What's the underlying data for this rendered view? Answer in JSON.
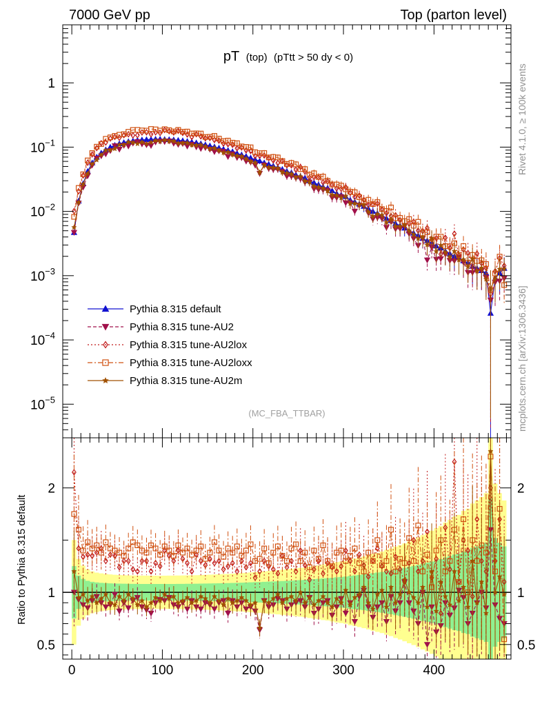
{
  "header": {
    "left": "7000 GeV pp",
    "right": "Top (parton level)"
  },
  "side": {
    "rivet": "Rivet 4.1.0, ≥ 100k events",
    "mcplots": "mcplots.cern.ch [arXiv:1306.3436]"
  },
  "colors": {
    "default": "#1010d0",
    "au2": "#a0104a",
    "au2lox": "#c01818",
    "au2loxx": "#d05010",
    "au2m": "#a05000",
    "band_outer": "#ffff90",
    "band_inner": "#90f090"
  },
  "chart_data": [
    {
      "type": "line",
      "scale": "log",
      "title_main": "pT",
      "title_sub1": "(top)",
      "title_sub2": "(pTtt > 50 dy < 0)",
      "analysis": "(MC_FBA_TTBAR)",
      "xlim": [
        -10,
        485
      ],
      "ylim": [
        3e-06,
        8
      ],
      "ytick_labels": [
        "1",
        "10",
        "10",
        "10",
        "10",
        "10"
      ],
      "ytick_exponents": [
        "",
        "−1",
        "−2",
        "−3",
        "−4",
        "−5"
      ],
      "legend": [
        {
          "name": "Pythia 8.315 default",
          "marker": "triangle-up",
          "dash": ""
        },
        {
          "name": "Pythia 8.315 tune-AU2",
          "marker": "triangle-down",
          "dash": "5,3"
        },
        {
          "name": "Pythia 8.315 tune-AU2lox",
          "marker": "diamond",
          "dash": "2,3"
        },
        {
          "name": "Pythia 8.315 tune-AU2loxx",
          "marker": "square",
          "dash": "7,3,2,3"
        },
        {
          "name": "Pythia 8.315 tune-AU2m",
          "marker": "star",
          "dash": ""
        }
      ],
      "series_keys": [
        "default",
        "au2",
        "au2lox",
        "au2loxx",
        "au2m"
      ],
      "bin_centers": [
        2.5,
        7.5,
        12.5,
        17.5,
        22.5,
        27.5,
        32.5,
        37.5,
        42.5,
        47.5,
        52.5,
        57.5,
        62.5,
        67.5,
        72.5,
        77.5,
        82.5,
        87.5,
        92.5,
        97.5,
        102.5,
        107.5,
        112.5,
        117.5,
        122.5,
        127.5,
        132.5,
        137.5,
        142.5,
        147.5,
        152.5,
        157.5,
        162.5,
        167.5,
        172.5,
        177.5,
        182.5,
        187.5,
        192.5,
        197.5,
        202.5,
        207.5,
        212.5,
        217.5,
        222.5,
        227.5,
        232.5,
        237.5,
        242.5,
        247.5,
        252.5,
        257.5,
        262.5,
        267.5,
        272.5,
        277.5,
        282.5,
        287.5,
        292.5,
        297.5,
        302.5,
        307.5,
        312.5,
        317.5,
        322.5,
        327.5,
        332.5,
        337.5,
        342.5,
        347.5,
        352.5,
        357.5,
        362.5,
        367.5,
        372.5,
        377.5,
        382.5,
        387.5,
        392.5,
        397.5,
        402.5,
        407.5,
        412.5,
        417.5,
        422.5,
        427.5,
        432.5,
        437.5,
        442.5,
        447.5,
        452.5,
        457.5,
        462.5,
        467.5,
        472.5,
        477.5
      ],
      "default_values": [
        0.0047,
        0.0145,
        0.027,
        0.042,
        0.057,
        0.07,
        0.081,
        0.091,
        0.1,
        0.107,
        0.113,
        0.118,
        0.122,
        0.125,
        0.128,
        0.13,
        0.131,
        0.132,
        0.133,
        0.133,
        0.132,
        0.131,
        0.13,
        0.128,
        0.126,
        0.123,
        0.12,
        0.117,
        0.113,
        0.109,
        0.105,
        0.101,
        0.097,
        0.093,
        0.089,
        0.085,
        0.08,
        0.076,
        0.072,
        0.068,
        0.064,
        0.061,
        0.057,
        0.054,
        0.051,
        0.048,
        0.045,
        0.042,
        0.04,
        0.037,
        0.035,
        0.033,
        0.03,
        0.028,
        0.026,
        0.024,
        0.023,
        0.021,
        0.019,
        0.018,
        0.017,
        0.015,
        0.014,
        0.013,
        0.012,
        0.011,
        0.01,
        0.0093,
        0.0086,
        0.0078,
        0.0072,
        0.0065,
        0.006,
        0.0055,
        0.005,
        0.0046,
        0.0042,
        0.0038,
        0.0035,
        0.0032,
        0.0029,
        0.0027,
        0.0024,
        0.0022,
        0.002,
        0.0019,
        0.0017,
        0.0016,
        0.0014,
        0.0013,
        0.0012,
        0.0011,
        0.00026,
        0.0009,
        0.0011,
        0.0013
      ],
      "ratio_au2": [
        1.0,
        0.93,
        0.88,
        0.85,
        0.92,
        0.96,
        0.9,
        0.86,
        0.88,
        0.98,
        0.82,
        0.9,
        0.85,
        0.92,
        0.95,
        0.86,
        0.83,
        0.8,
        0.9,
        0.93,
        0.92,
        0.95,
        0.88,
        0.86,
        0.9,
        0.84,
        0.92,
        0.86,
        0.84,
        0.9,
        0.88,
        0.84,
        0.9,
        0.92,
        0.8,
        0.92,
        0.86,
        0.9,
        0.84,
        0.86,
        0.82,
        0.64,
        0.92,
        0.86,
        0.88,
        0.94,
        0.92,
        0.84,
        0.88,
        0.9,
        0.92,
        0.86,
        0.95,
        0.8,
        0.84,
        0.9,
        0.92,
        0.78,
        0.86,
        0.94,
        0.8,
        0.9,
        0.72,
        0.96,
        1.02,
        0.86,
        0.76,
        0.86,
        0.9,
        0.72,
        0.96,
        0.82,
        0.9,
        1.1,
        0.9,
        0.82,
        0.7,
        1.0,
        0.5,
        0.86,
        0.62,
        0.68,
        0.9,
        0.78,
        0.85,
        1.02,
        0.95,
        0.7,
        0.8,
        0.9,
        1.0,
        0.85,
        1.6,
        0.88,
        0.75,
        0.7
      ],
      "ratio_au2lox": [
        2.15,
        1.42,
        1.34,
        1.36,
        1.35,
        1.38,
        1.42,
        1.3,
        1.36,
        1.35,
        1.24,
        1.3,
        1.3,
        1.22,
        1.2,
        1.3,
        1.3,
        1.2,
        1.28,
        1.25,
        1.4,
        1.35,
        1.3,
        1.4,
        1.32,
        1.28,
        1.2,
        1.36,
        1.3,
        1.26,
        1.32,
        1.28,
        1.3,
        1.22,
        1.25,
        1.28,
        1.2,
        1.3,
        1.24,
        1.28,
        1.14,
        1.2,
        1.3,
        1.25,
        1.22,
        1.18,
        1.35,
        1.24,
        1.3,
        1.2,
        1.4,
        1.26,
        1.12,
        1.22,
        1.3,
        1.18,
        1.28,
        1.24,
        1.2,
        1.25,
        1.4,
        1.3,
        1.2,
        1.36,
        1.26,
        1.15,
        1.3,
        1.42,
        1.25,
        1.2,
        1.18,
        1.34,
        1.22,
        1.1,
        1.28,
        1.5,
        1.2,
        1.3,
        1.58,
        1.14,
        1.32,
        0.8,
        1.62,
        1.22,
        2.25,
        1.1,
        1.5,
        1.4,
        0.96,
        1.7,
        1.3,
        1.2,
        2.0,
        1.3,
        1.7,
        1.1
      ],
      "ratio_au2loxx": [
        1.75,
        1.6,
        1.4,
        1.48,
        1.42,
        1.45,
        1.38,
        1.48,
        1.42,
        1.4,
        1.38,
        1.35,
        1.42,
        1.48,
        1.45,
        1.4,
        1.38,
        1.45,
        1.42,
        1.36,
        1.44,
        1.4,
        1.35,
        1.45,
        1.38,
        1.42,
        1.36,
        1.4,
        1.44,
        1.32,
        1.38,
        1.48,
        1.4,
        1.34,
        1.42,
        1.38,
        1.44,
        1.35,
        1.4,
        1.46,
        1.3,
        1.32,
        1.42,
        1.28,
        1.38,
        1.44,
        1.35,
        1.3,
        1.42,
        1.46,
        1.3,
        1.38,
        1.24,
        1.4,
        1.32,
        1.45,
        1.3,
        1.25,
        1.38,
        1.4,
        1.3,
        1.35,
        1.42,
        1.28,
        1.2,
        1.38,
        1.3,
        1.5,
        1.26,
        1.3,
        1.6,
        1.2,
        1.32,
        1.28,
        1.52,
        1.3,
        1.64,
        1.2,
        1.36,
        1.05,
        1.4,
        1.5,
        1.2,
        1.3,
        1.6,
        1.1,
        1.7,
        1.0,
        1.5,
        1.3,
        1.45,
        1.38,
        2.3,
        1.2,
        1.8,
        0.55
      ],
      "ratio_au2m": [
        1.2,
        0.95,
        0.98,
        0.92,
        0.96,
        0.9,
        0.94,
        0.98,
        0.9,
        0.88,
        0.96,
        0.92,
        0.98,
        0.94,
        0.88,
        0.92,
        0.86,
        0.9,
        0.95,
        0.92,
        0.98,
        0.94,
        0.96,
        0.9,
        0.92,
        0.95,
        0.9,
        0.92,
        0.96,
        0.94,
        0.9,
        0.96,
        0.92,
        0.88,
        0.94,
        0.9,
        0.92,
        0.95,
        0.92,
        0.88,
        0.9,
        0.66,
        0.92,
        0.9,
        0.94,
        0.98,
        0.9,
        0.94,
        0.96,
        0.92,
        1.0,
        0.9,
        0.95,
        0.88,
        0.92,
        0.96,
        0.9,
        0.86,
        0.94,
        0.9,
        1.02,
        0.88,
        0.95,
        0.98,
        1.05,
        0.9,
        0.84,
        0.98,
        1.02,
        0.86,
        1.05,
        0.9,
        0.98,
        1.12,
        1.0,
        0.95,
        0.9,
        1.05,
        0.86,
        1.2,
        0.82,
        1.1,
        0.96,
        0.88,
        1.2,
        0.92,
        1.05,
        0.86,
        1.3,
        0.9,
        1.1,
        0.8,
        2.35,
        1.0,
        1.15,
        0.98
      ]
    },
    {
      "type": "line",
      "ylabel": "Ratio to Pythia 8.315 default",
      "reference": 1.0,
      "ylim": [
        0.36,
        2.48
      ],
      "xlim": [
        -10,
        485
      ],
      "ytick_labels": [
        "0.5",
        "1",
        "2"
      ],
      "ytick_values": [
        0.5,
        1,
        2
      ],
      "xtick_labels": [
        "0",
        "100",
        "200",
        "300",
        "400"
      ],
      "xtick_values": [
        0,
        100,
        200,
        300,
        400
      ]
    }
  ]
}
